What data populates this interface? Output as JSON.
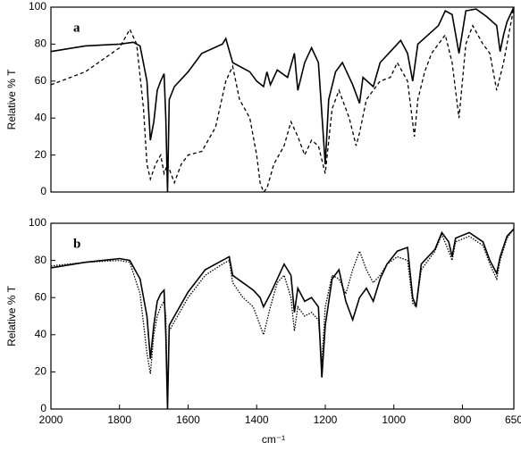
{
  "chart_data": [
    {
      "type": "line",
      "panel_label": "a",
      "ylabel": "Relative % T",
      "xlim": [
        2000,
        650
      ],
      "ylim": [
        0,
        100
      ],
      "yticks": [
        0,
        20,
        40,
        60,
        80,
        100
      ],
      "series": [
        {
          "color": "#000000",
          "dash": "none",
          "x": [
            2000,
            1900,
            1800,
            1760,
            1740,
            1720,
            1710,
            1700,
            1690,
            1680,
            1670,
            1665,
            1660,
            1655,
            1640,
            1600,
            1560,
            1500,
            1490,
            1470,
            1450,
            1420,
            1400,
            1380,
            1370,
            1360,
            1340,
            1310,
            1290,
            1280,
            1260,
            1240,
            1220,
            1200,
            1190,
            1170,
            1150,
            1120,
            1100,
            1090,
            1060,
            1040,
            1000,
            980,
            960,
            945,
            930,
            900,
            870,
            850,
            830,
            810,
            790,
            760,
            730,
            700,
            690,
            680,
            670,
            650
          ],
          "values": [
            76,
            79,
            80,
            81,
            79,
            60,
            28,
            38,
            55,
            60,
            64,
            40,
            0,
            50,
            57,
            65,
            75,
            80,
            83,
            70,
            68,
            65,
            60,
            57,
            65,
            58,
            66,
            62,
            75,
            55,
            70,
            78,
            70,
            15,
            50,
            65,
            70,
            58,
            48,
            62,
            57,
            70,
            78,
            82,
            75,
            60,
            80,
            85,
            90,
            98,
            96,
            75,
            98,
            99,
            95,
            90,
            76,
            85,
            92,
            100
          ]
        },
        {
          "color": "#000000",
          "dash": "4,3",
          "x": [
            2000,
            1900,
            1800,
            1770,
            1750,
            1730,
            1720,
            1710,
            1695,
            1680,
            1670,
            1660,
            1640,
            1620,
            1600,
            1560,
            1520,
            1490,
            1470,
            1450,
            1420,
            1400,
            1390,
            1380,
            1370,
            1350,
            1320,
            1300,
            1280,
            1260,
            1240,
            1220,
            1200,
            1180,
            1160,
            1130,
            1110,
            1100,
            1080,
            1060,
            1040,
            1010,
            990,
            960,
            940,
            930,
            910,
            890,
            870,
            850,
            830,
            810,
            790,
            770,
            740,
            720,
            700,
            680,
            665,
            650
          ],
          "values": [
            58,
            65,
            78,
            88,
            80,
            45,
            15,
            7,
            15,
            20,
            10,
            15,
            5,
            15,
            20,
            22,
            35,
            60,
            68,
            50,
            40,
            20,
            5,
            0,
            2,
            15,
            25,
            38,
            30,
            20,
            28,
            25,
            10,
            45,
            55,
            40,
            25,
            32,
            50,
            55,
            60,
            62,
            70,
            60,
            30,
            50,
            65,
            75,
            80,
            85,
            70,
            40,
            80,
            90,
            80,
            75,
            55,
            70,
            85,
            100
          ]
        }
      ]
    },
    {
      "type": "line",
      "panel_label": "b",
      "ylabel": "Relative % T",
      "xlabel": "cm⁻¹",
      "xlim": [
        2000,
        650
      ],
      "ylim": [
        0,
        100
      ],
      "yticks": [
        0,
        20,
        40,
        60,
        80,
        100
      ],
      "xticks": [
        2000,
        1800,
        1600,
        1400,
        1200,
        1000,
        800,
        650
      ],
      "series": [
        {
          "color": "#000000",
          "dash": "none",
          "x": [
            2000,
            1900,
            1800,
            1770,
            1740,
            1720,
            1710,
            1700,
            1690,
            1680,
            1670,
            1665,
            1660,
            1655,
            1640,
            1600,
            1550,
            1500,
            1480,
            1470,
            1440,
            1410,
            1390,
            1380,
            1360,
            1340,
            1320,
            1300,
            1290,
            1280,
            1260,
            1240,
            1220,
            1210,
            1200,
            1180,
            1160,
            1140,
            1120,
            1100,
            1080,
            1060,
            1040,
            1020,
            990,
            960,
            945,
            935,
            920,
            880,
            860,
            840,
            830,
            820,
            780,
            740,
            720,
            700,
            690,
            670,
            650
          ],
          "values": [
            76,
            79,
            81,
            80,
            70,
            50,
            27,
            45,
            58,
            62,
            64,
            40,
            0,
            45,
            50,
            63,
            75,
            80,
            82,
            72,
            68,
            64,
            60,
            55,
            62,
            70,
            78,
            72,
            52,
            65,
            58,
            60,
            55,
            17,
            45,
            70,
            75,
            58,
            48,
            60,
            65,
            58,
            70,
            78,
            85,
            87,
            60,
            55,
            78,
            86,
            95,
            90,
            82,
            92,
            95,
            90,
            80,
            73,
            82,
            93,
            97
          ]
        },
        {
          "color": "#000000",
          "dash": "1.5,1.5",
          "x": [
            2000,
            1900,
            1800,
            1770,
            1740,
            1720,
            1710,
            1700,
            1690,
            1680,
            1670,
            1665,
            1660,
            1655,
            1640,
            1600,
            1550,
            1500,
            1480,
            1470,
            1440,
            1410,
            1390,
            1380,
            1360,
            1340,
            1320,
            1300,
            1290,
            1280,
            1260,
            1240,
            1220,
            1210,
            1200,
            1180,
            1160,
            1140,
            1120,
            1100,
            1080,
            1060,
            1040,
            1020,
            990,
            960,
            945,
            935,
            920,
            880,
            860,
            840,
            830,
            820,
            780,
            740,
            720,
            700,
            690,
            670,
            650
          ],
          "values": [
            77,
            79,
            80,
            79,
            62,
            30,
            19,
            40,
            50,
            55,
            58,
            50,
            3,
            42,
            47,
            60,
            72,
            78,
            80,
            68,
            60,
            55,
            45,
            40,
            55,
            68,
            72,
            60,
            42,
            55,
            50,
            52,
            48,
            25,
            55,
            72,
            70,
            62,
            75,
            85,
            75,
            68,
            72,
            78,
            82,
            80,
            57,
            55,
            75,
            85,
            94,
            85,
            80,
            90,
            93,
            88,
            78,
            70,
            80,
            92,
            97
          ]
        }
      ]
    }
  ]
}
